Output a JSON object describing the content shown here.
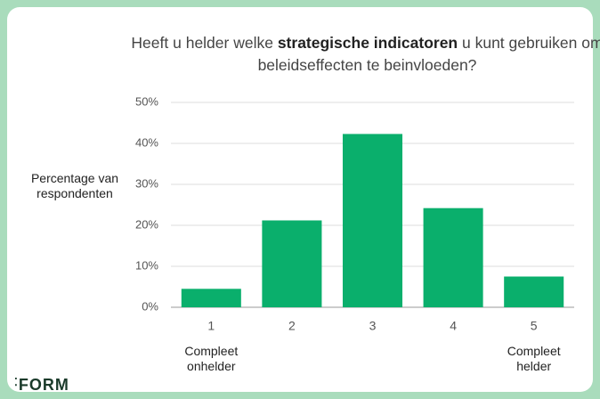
{
  "chart_data": {
    "type": "bar",
    "title_parts": [
      {
        "text": "Heeft u helder welke ",
        "bold": false
      },
      {
        "text": "strategische indicatoren",
        "bold": true
      },
      {
        "text": " u kunt gebruiken om beleidseffecten te beinvloeden?",
        "bold": false
      }
    ],
    "y_label": "Percentage van respondenten",
    "categories": [
      "1",
      "2",
      "3",
      "4",
      "5"
    ],
    "values": [
      4.5,
      21.2,
      42.3,
      24.2,
      7.5
    ],
    "color": "#0aaf6c",
    "ylim": [
      0,
      50
    ],
    "yticks": [
      {
        "value": 0,
        "label": "0%"
      },
      {
        "value": 10,
        "label": "10%"
      },
      {
        "value": 20,
        "label": "20%"
      },
      {
        "value": 30,
        "label": "30%"
      },
      {
        "value": 40,
        "label": "40%"
      },
      {
        "value": 50,
        "label": "50%"
      }
    ],
    "grid": true,
    "annotations": [
      {
        "text": "Compleet onhelder",
        "category": 0
      },
      {
        "text": "Compleet helder",
        "category": 4
      }
    ],
    "logo": "FORM"
  }
}
